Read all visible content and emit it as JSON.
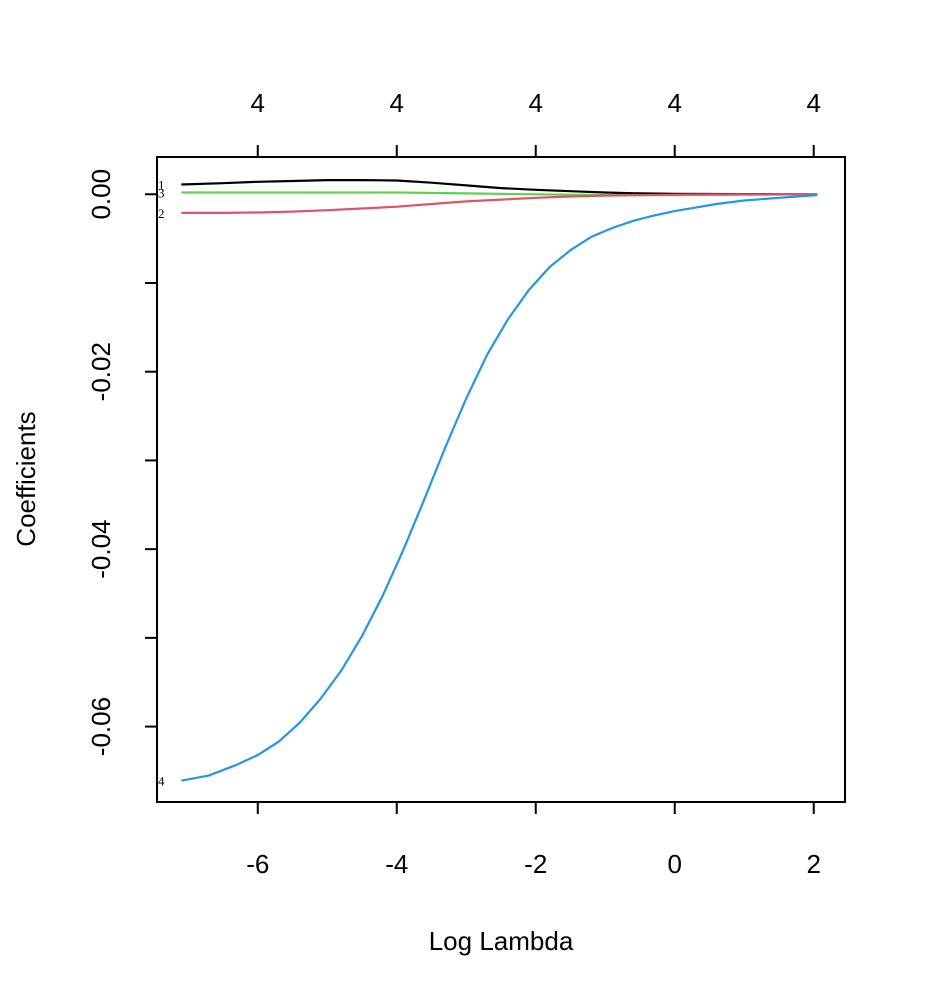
{
  "chart_data": {
    "type": "line",
    "xlabel": "Log Lambda",
    "ylabel": "Coefficients",
    "xlim": [
      -7.45,
      2.45
    ],
    "ylim": [
      -0.0685,
      0.0042
    ],
    "x_ticks": [
      -6,
      -4,
      -2,
      0,
      2
    ],
    "x_tick_labels": [
      "-6",
      "-4",
      "-2",
      "0",
      "2"
    ],
    "y_ticks": [
      0.0,
      -0.01,
      -0.02,
      -0.03,
      -0.04,
      -0.05,
      -0.06
    ],
    "y_tick_labels": [
      "0.00",
      "",
      "-0.02",
      "",
      "-0.04",
      "",
      "-0.06"
    ],
    "top_ticks": [
      -6,
      -4,
      -2,
      0,
      2
    ],
    "top_tick_labels": [
      "4",
      "4",
      "4",
      "4",
      "4"
    ],
    "grid": false,
    "series": [
      {
        "label": "1",
        "color": "#000000",
        "x": [
          -7.1,
          -6.5,
          -6.0,
          -5.5,
          -5.0,
          -4.5,
          -4.0,
          -3.5,
          -3.0,
          -2.5,
          -2.0,
          -1.5,
          -1.0,
          -0.5,
          0.0,
          0.5,
          1.0,
          1.5,
          2.05
        ],
        "y": [
          0.0011,
          0.00125,
          0.0014,
          0.0015,
          0.0016,
          0.0016,
          0.00155,
          0.0013,
          0.001,
          0.0007,
          0.0005,
          0.00035,
          0.0002,
          0.0001,
          5e-05,
          3e-05,
          2e-05,
          1e-05,
          0.0
        ]
      },
      {
        "label": "3",
        "color": "#61D04F",
        "x": [
          -7.1,
          -6.0,
          -5.0,
          -4.0,
          -3.0,
          -2.0,
          -1.0,
          0.0,
          1.0,
          2.05
        ],
        "y": [
          0.0002,
          0.0002,
          0.0002,
          0.0002,
          0.0001,
          0.0,
          -0.0001,
          -0.0001,
          -5e-05,
          0.0
        ]
      },
      {
        "label": "2",
        "color": "#DF536B",
        "x": [
          -7.1,
          -6.5,
          -6.0,
          -5.5,
          -5.0,
          -4.5,
          -4.0,
          -3.5,
          -3.0,
          -2.5,
          -2.0,
          -1.5,
          -1.0,
          -0.5,
          0.0,
          0.5,
          1.0,
          1.5,
          2.05
        ],
        "y": [
          -0.0021,
          -0.0021,
          -0.00205,
          -0.00195,
          -0.0018,
          -0.0016,
          -0.0014,
          -0.0011,
          -0.0008,
          -0.0006,
          -0.0004,
          -0.00025,
          -0.00015,
          -0.0001,
          -5e-05,
          -3e-05,
          -2e-05,
          -1e-05,
          0.0
        ]
      },
      {
        "label": "4",
        "color": "#2297E6",
        "x": [
          -7.1,
          -6.7,
          -6.3,
          -6.0,
          -5.7,
          -5.4,
          -5.1,
          -4.8,
          -4.5,
          -4.2,
          -3.9,
          -3.6,
          -3.3,
          -3.0,
          -2.7,
          -2.4,
          -2.1,
          -1.8,
          -1.5,
          -1.2,
          -0.9,
          -0.6,
          -0.3,
          0.0,
          0.3,
          0.6,
          1.0,
          1.5,
          2.05
        ],
        "y": [
          -0.0661,
          -0.0655,
          -0.0643,
          -0.0632,
          -0.0617,
          -0.0596,
          -0.0569,
          -0.0537,
          -0.0498,
          -0.0452,
          -0.04,
          -0.0343,
          -0.0285,
          -0.023,
          -0.0181,
          -0.0141,
          -0.0108,
          -0.0082,
          -0.0063,
          -0.0048,
          -0.0038,
          -0.003,
          -0.0024,
          -0.0019,
          -0.0015,
          -0.0011,
          -0.0007,
          -0.0004,
          -0.0001
        ]
      }
    ]
  }
}
